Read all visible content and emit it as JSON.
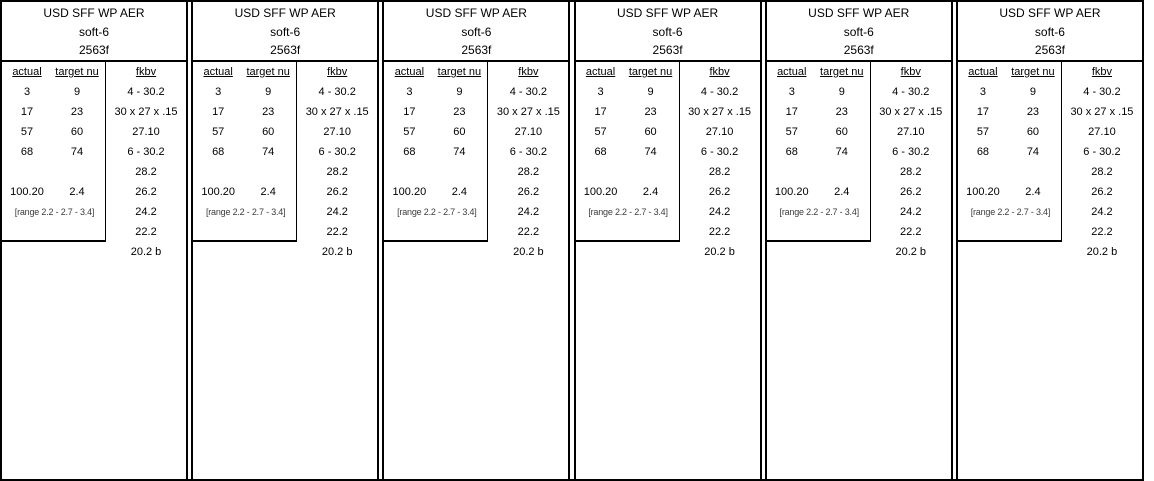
{
  "panels_count": 6,
  "panel": {
    "header_lines": [
      "USD SFF WP AER",
      "soft-6",
      "2563f"
    ],
    "columns": {
      "actual": "actual",
      "target": "target nu",
      "fkbv": "fkbv"
    },
    "rows": [
      {
        "actual": "3",
        "target": "9"
      },
      {
        "actual": "17",
        "target": "23"
      },
      {
        "actual": "57",
        "target": "60"
      },
      {
        "actual": "68",
        "target": "74"
      },
      {
        "actual": "",
        "target": ""
      },
      {
        "actual": "100.20",
        "target": "2.4"
      }
    ],
    "range_note": "[range 2.2 - 2.7 - 3.4]",
    "fkbv_values": [
      "4 - 30.2",
      "30 x 27 x .15",
      "27.10",
      "6 - 30.2",
      "28.2",
      "26.2",
      "24.2",
      "22.2",
      "20.2 b"
    ]
  },
  "colors": {
    "border": "#000000",
    "text": "#000000",
    "range_note_text": "#3c3c3c",
    "background": "#ffffff"
  }
}
